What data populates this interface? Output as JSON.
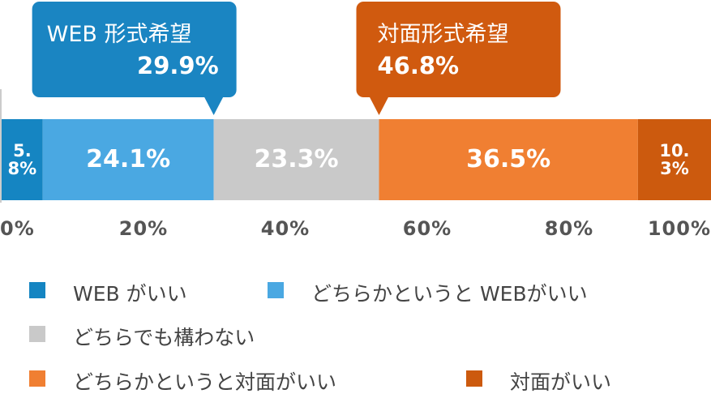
{
  "chart_data": {
    "type": "stacked-bar-100",
    "series": [
      {
        "name": "WEB がいい",
        "color": "#1585c2",
        "values": [
          5.8
        ],
        "value_labels": [
          "5.8%"
        ]
      },
      {
        "name": "どちらかというと WEBがいい",
        "color": "#4aa8e2",
        "values": [
          24.1
        ],
        "value_labels": [
          "24.1%"
        ]
      },
      {
        "name": "どちらでも構わない",
        "color": "#c9c9c9",
        "values": [
          23.3
        ],
        "value_labels": [
          "23.3%"
        ]
      },
      {
        "name": "どちらかというと対面がいい",
        "color": "#f07f32",
        "values": [
          36.5
        ],
        "value_labels": [
          "36.5%"
        ]
      },
      {
        "name": "対面がいい",
        "color": "#cc5a0e",
        "values": [
          10.3
        ],
        "value_labels": [
          "10.3%"
        ]
      }
    ],
    "xlim": [
      0,
      100
    ],
    "xticks": [
      {
        "value": 0,
        "label": "0%"
      },
      {
        "value": 20,
        "label": "20%"
      },
      {
        "value": 40,
        "label": "40%"
      },
      {
        "value": 60,
        "label": "60%"
      },
      {
        "value": 80,
        "label": "80%"
      },
      {
        "value": 100,
        "label": "100%"
      }
    ],
    "annotations": [
      {
        "title": "WEB 形式希望",
        "value": 29.9,
        "value_label": "29.9%",
        "color": "#1a85c2"
      },
      {
        "title": "対面形式希望",
        "value": 46.8,
        "value_label": "46.8%",
        "color": "#d05a0f"
      }
    ]
  }
}
